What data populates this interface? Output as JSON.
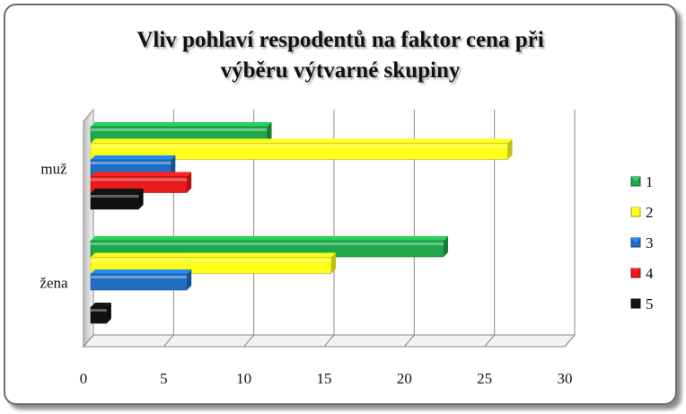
{
  "chart_data": {
    "type": "bar",
    "orientation": "horizontal",
    "title_lines": [
      "Vliv pohlaví respodentů na faktor cena při",
      "výběru výtvarné skupiny"
    ],
    "categories": [
      "muž",
      "žena"
    ],
    "series": [
      {
        "name": "1",
        "color": "#1fa84a",
        "values": [
          11,
          22
        ]
      },
      {
        "name": "2",
        "color": "#ffff1a",
        "values": [
          26,
          15
        ]
      },
      {
        "name": "3",
        "color": "#1f6fc4",
        "values": [
          5,
          6
        ]
      },
      {
        "name": "4",
        "color": "#e81a1a",
        "values": [
          6,
          0
        ]
      },
      {
        "name": "5",
        "color": "#111111",
        "values": [
          3,
          1
        ]
      }
    ],
    "xlim": [
      0,
      30
    ],
    "xticks": [
      0,
      5,
      10,
      15,
      20,
      25,
      30
    ],
    "grid": true,
    "legend_position": "right",
    "style": "3d"
  }
}
